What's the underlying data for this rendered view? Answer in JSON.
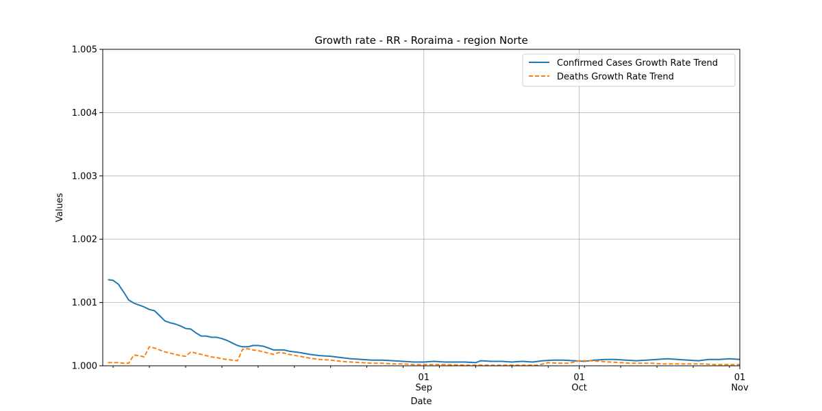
{
  "chart_data": {
    "type": "line",
    "title": "Growth rate - RR - Roraima - region Norte",
    "xlabel": "Date",
    "ylabel": "Values",
    "ylim": [
      1.0,
      1.005
    ],
    "xlim": [
      "2020-07-01",
      "2020-11-01"
    ],
    "y_ticks": [
      "1.000",
      "1.001",
      "1.002",
      "1.003",
      "1.004",
      "1.005"
    ],
    "x_major_ticks": [
      {
        "date": "2020-09-01",
        "day": "01",
        "month": "Sep"
      },
      {
        "date": "2020-10-01",
        "day": "01",
        "month": "Oct"
      },
      {
        "date": "2020-11-01",
        "day": "01",
        "month": "Nov"
      }
    ],
    "grid": true,
    "legend_position": "top-right",
    "series": [
      {
        "name": "Confirmed Cases Growth Rate Trend",
        "color": "#1f77b4",
        "dash": "solid",
        "points": [
          [
            "2020-07-02",
            1.00136
          ],
          [
            "2020-07-03",
            1.00135
          ],
          [
            "2020-07-04",
            1.00129
          ],
          [
            "2020-07-05",
            1.00117
          ],
          [
            "2020-07-06",
            1.00104
          ],
          [
            "2020-07-07",
            1.00099
          ],
          [
            "2020-07-08",
            1.00096
          ],
          [
            "2020-07-09",
            1.00093
          ],
          [
            "2020-07-10",
            1.00089
          ],
          [
            "2020-07-11",
            1.00087
          ],
          [
            "2020-07-12",
            1.00079
          ],
          [
            "2020-07-13",
            1.00071
          ],
          [
            "2020-07-14",
            1.00068
          ],
          [
            "2020-07-15",
            1.00066
          ],
          [
            "2020-07-16",
            1.00063
          ],
          [
            "2020-07-17",
            1.00059
          ],
          [
            "2020-07-18",
            1.00058
          ],
          [
            "2020-07-19",
            1.00052
          ],
          [
            "2020-07-20",
            1.00047
          ],
          [
            "2020-07-21",
            1.00047
          ],
          [
            "2020-07-22",
            1.00045
          ],
          [
            "2020-07-23",
            1.00045
          ],
          [
            "2020-07-24",
            1.00043
          ],
          [
            "2020-07-25",
            1.0004
          ],
          [
            "2020-07-26",
            1.00036
          ],
          [
            "2020-07-27",
            1.00032
          ],
          [
            "2020-07-28",
            1.0003
          ],
          [
            "2020-07-29",
            1.0003
          ],
          [
            "2020-07-30",
            1.00032
          ],
          [
            "2020-07-31",
            1.00032
          ],
          [
            "2020-08-01",
            1.00031
          ],
          [
            "2020-08-02",
            1.00028
          ],
          [
            "2020-08-03",
            1.00025
          ],
          [
            "2020-08-04",
            1.00025
          ],
          [
            "2020-08-05",
            1.00025
          ],
          [
            "2020-08-06",
            1.00023
          ],
          [
            "2020-08-08",
            1.00021
          ],
          [
            "2020-08-10",
            1.00018
          ],
          [
            "2020-08-12",
            1.00016
          ],
          [
            "2020-08-14",
            1.00015
          ],
          [
            "2020-08-16",
            1.00013
          ],
          [
            "2020-08-18",
            1.00011
          ],
          [
            "2020-08-20",
            1.0001
          ],
          [
            "2020-08-22",
            1.00009
          ],
          [
            "2020-08-24",
            1.00009
          ],
          [
            "2020-08-26",
            1.00008
          ],
          [
            "2020-08-28",
            1.00007
          ],
          [
            "2020-08-30",
            1.00006
          ],
          [
            "2020-09-01",
            1.00006
          ],
          [
            "2020-09-03",
            1.00007
          ],
          [
            "2020-09-05",
            1.00006
          ],
          [
            "2020-09-07",
            1.00006
          ],
          [
            "2020-09-09",
            1.00006
          ],
          [
            "2020-09-11",
            1.00005
          ],
          [
            "2020-09-12",
            1.00008
          ],
          [
            "2020-09-14",
            1.00007
          ],
          [
            "2020-09-16",
            1.00007
          ],
          [
            "2020-09-18",
            1.00006
          ],
          [
            "2020-09-20",
            1.00007
          ],
          [
            "2020-09-22",
            1.00006
          ],
          [
            "2020-09-24",
            1.00008
          ],
          [
            "2020-09-26",
            1.00009
          ],
          [
            "2020-09-28",
            1.00009
          ],
          [
            "2020-09-30",
            1.00008
          ],
          [
            "2020-10-02",
            1.00007
          ],
          [
            "2020-10-04",
            1.00009
          ],
          [
            "2020-10-06",
            1.0001
          ],
          [
            "2020-10-08",
            1.0001
          ],
          [
            "2020-10-10",
            1.00009
          ],
          [
            "2020-10-12",
            1.00008
          ],
          [
            "2020-10-14",
            1.00009
          ],
          [
            "2020-10-16",
            1.0001
          ],
          [
            "2020-10-18",
            1.00011
          ],
          [
            "2020-10-20",
            1.0001
          ],
          [
            "2020-10-22",
            1.00009
          ],
          [
            "2020-10-24",
            1.00008
          ],
          [
            "2020-10-26",
            1.0001
          ],
          [
            "2020-10-28",
            1.0001
          ],
          [
            "2020-10-30",
            1.00011
          ],
          [
            "2020-11-01",
            1.0001
          ]
        ]
      },
      {
        "name": "Deaths Growth Rate Trend",
        "color": "#ff7f0e",
        "dash": "dashed",
        "points": [
          [
            "2020-07-02",
            1.00005
          ],
          [
            "2020-07-03",
            1.00005
          ],
          [
            "2020-07-04",
            1.00005
          ],
          [
            "2020-07-05",
            1.00004
          ],
          [
            "2020-07-06",
            1.00004
          ],
          [
            "2020-07-07",
            1.00017
          ],
          [
            "2020-07-08",
            1.00016
          ],
          [
            "2020-07-09",
            1.00014
          ],
          [
            "2020-07-10",
            1.0003
          ],
          [
            "2020-07-11",
            1.00028
          ],
          [
            "2020-07-12",
            1.00025
          ],
          [
            "2020-07-13",
            1.00022
          ],
          [
            "2020-07-14",
            1.0002
          ],
          [
            "2020-07-15",
            1.00018
          ],
          [
            "2020-07-16",
            1.00016
          ],
          [
            "2020-07-17",
            1.00015
          ],
          [
            "2020-07-18",
            1.00022
          ],
          [
            "2020-07-19",
            1.0002
          ],
          [
            "2020-07-20",
            1.00018
          ],
          [
            "2020-07-21",
            1.00016
          ],
          [
            "2020-07-22",
            1.00014
          ],
          [
            "2020-07-23",
            1.00013
          ],
          [
            "2020-07-24",
            1.00011
          ],
          [
            "2020-07-25",
            1.0001
          ],
          [
            "2020-07-26",
            1.00009
          ],
          [
            "2020-07-27",
            1.00008
          ],
          [
            "2020-07-28",
            1.00026
          ],
          [
            "2020-07-29",
            1.00027
          ],
          [
            "2020-07-30",
            1.00025
          ],
          [
            "2020-07-31",
            1.00024
          ],
          [
            "2020-08-01",
            1.00022
          ],
          [
            "2020-08-02",
            1.0002
          ],
          [
            "2020-08-03",
            1.00018
          ],
          [
            "2020-08-04",
            1.00021
          ],
          [
            "2020-08-05",
            1.0002
          ],
          [
            "2020-08-06",
            1.00018
          ],
          [
            "2020-08-08",
            1.00015
          ],
          [
            "2020-08-10",
            1.00012
          ],
          [
            "2020-08-12",
            1.0001
          ],
          [
            "2020-08-14",
            1.00009
          ],
          [
            "2020-08-16",
            1.00007
          ],
          [
            "2020-08-18",
            1.00006
          ],
          [
            "2020-08-20",
            1.00005
          ],
          [
            "2020-08-22",
            1.00004
          ],
          [
            "2020-08-24",
            1.00004
          ],
          [
            "2020-08-26",
            1.00003
          ],
          [
            "2020-08-28",
            1.00003
          ],
          [
            "2020-08-30",
            1.00002
          ],
          [
            "2020-09-01",
            1.00002
          ],
          [
            "2020-09-05",
            1.00002
          ],
          [
            "2020-09-09",
            1.00001
          ],
          [
            "2020-09-13",
            1.00001
          ],
          [
            "2020-09-17",
            1.00001
          ],
          [
            "2020-09-21",
            1.00001
          ],
          [
            "2020-09-23",
            1.00001
          ],
          [
            "2020-09-25",
            1.00005
          ],
          [
            "2020-09-27",
            1.00004
          ],
          [
            "2020-09-29",
            1.00004
          ],
          [
            "2020-10-01",
            1.00008
          ],
          [
            "2020-10-03",
            1.00008
          ],
          [
            "2020-10-05",
            1.00007
          ],
          [
            "2020-10-07",
            1.00006
          ],
          [
            "2020-10-09",
            1.00005
          ],
          [
            "2020-10-11",
            1.00004
          ],
          [
            "2020-10-13",
            1.00004
          ],
          [
            "2020-10-15",
            1.00004
          ],
          [
            "2020-10-17",
            1.00003
          ],
          [
            "2020-10-19",
            1.00003
          ],
          [
            "2020-10-21",
            1.00003
          ],
          [
            "2020-10-23",
            1.00003
          ],
          [
            "2020-10-25",
            1.00003
          ],
          [
            "2020-10-27",
            1.00002
          ],
          [
            "2020-10-29",
            1.00002
          ],
          [
            "2020-11-01",
            1.00002
          ]
        ]
      }
    ]
  }
}
